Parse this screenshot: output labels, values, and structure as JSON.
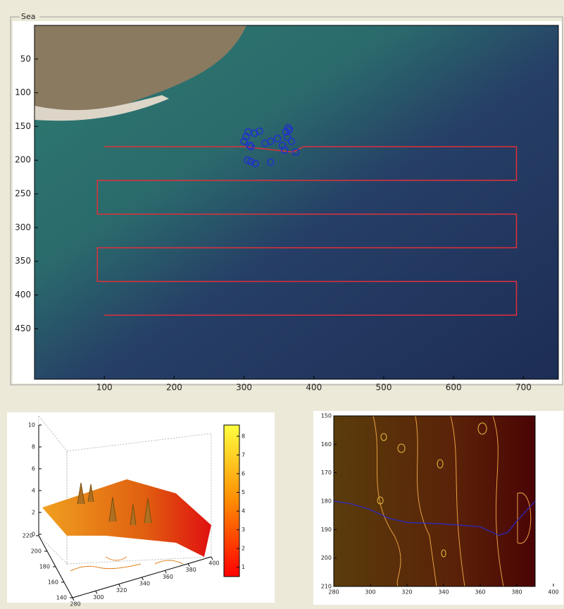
{
  "panel": {
    "title": "Sea"
  },
  "main_plot": {
    "xlim": [
      0,
      750
    ],
    "ylim": [
      0,
      525
    ],
    "xticks": [
      100,
      200,
      300,
      400,
      500,
      600,
      700
    ],
    "yticks": [
      50,
      100,
      150,
      200,
      250,
      300,
      350,
      400,
      450
    ],
    "path": {
      "color": "#e0303a",
      "x": [
        100,
        300,
        370,
        385,
        690,
        690,
        90,
        90,
        690,
        690,
        90,
        90,
        690,
        690,
        100
      ],
      "y": [
        180,
        180,
        188,
        180,
        180,
        230,
        230,
        280,
        280,
        330,
        330,
        380,
        380,
        430,
        430
      ]
    },
    "points": {
      "color": "#2030d0",
      "x": [
        300,
        303,
        306,
        308,
        310,
        315,
        322,
        330,
        338,
        348,
        355,
        360,
        362,
        363,
        365,
        368,
        358,
        374,
        305,
        310,
        316,
        338
      ],
      "y": [
        172,
        165,
        158,
        178,
        180,
        160,
        157,
        175,
        172,
        168,
        178,
        158,
        166,
        152,
        155,
        172,
        185,
        188,
        200,
        202,
        205,
        203
      ]
    }
  },
  "surface_plot": {
    "xlim": [
      280,
      400
    ],
    "xticks": [
      280,
      300,
      320,
      340,
      360,
      380,
      400
    ],
    "ylim": [
      140,
      220
    ],
    "yticks": [
      140,
      160,
      180,
      200,
      220
    ],
    "zlim": [
      0,
      10
    ],
    "zticks": [
      0,
      2,
      4,
      6,
      8,
      10
    ],
    "colorbar_lim": [
      0.5,
      8.6
    ],
    "colorbar_ticks": [
      1,
      2,
      3,
      4,
      5,
      6,
      7,
      8
    ]
  },
  "contour_plot": {
    "xlim": [
      280,
      390
    ],
    "xticks": [
      280,
      300,
      320,
      340,
      360,
      380,
      400
    ],
    "ylim": [
      150,
      210
    ],
    "yticks": [
      150,
      160,
      170,
      180,
      190,
      200,
      210
    ],
    "line": {
      "color": "#2a2ad0",
      "x": [
        280,
        290,
        300,
        310,
        320,
        340,
        360,
        370,
        375,
        380,
        390
      ],
      "y": [
        180,
        181,
        183,
        186,
        187.5,
        188,
        189,
        192,
        191,
        187,
        180
      ]
    }
  }
}
